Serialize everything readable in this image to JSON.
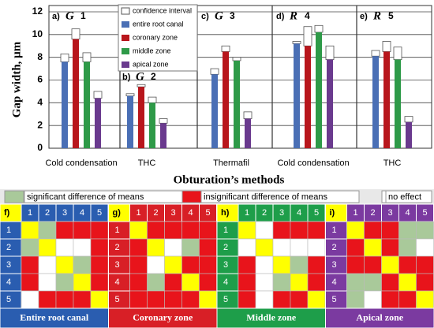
{
  "chart_data": {
    "type": "bar",
    "y_label": "Gap width, µm",
    "x_label": "Obturation’s methods",
    "categories": [
      "Cold condensation",
      "THC",
      "Thermafil",
      "Cold condensation",
      "THC"
    ],
    "panels": [
      {
        "letter": "a)",
        "name": "G",
        "number": "1"
      },
      {
        "letter": "b)",
        "name": "G",
        "number": "2"
      },
      {
        "letter": "c)",
        "name": "G",
        "number": "3"
      },
      {
        "letter": "d)",
        "name": "R",
        "number": "4"
      },
      {
        "letter": "e)",
        "name": "R",
        "number": "5"
      }
    ],
    "ci_name": "confidence interval",
    "ci_color": "#ffffff",
    "series": [
      {
        "name": "entire root canal",
        "color": "#4a6fb5",
        "values": [
          7.6,
          4.6,
          6.5,
          9.2,
          8.1
        ],
        "ci": [
          8.3,
          4.8,
          7.0,
          9.4,
          8.6
        ]
      },
      {
        "name": "coronary zone",
        "color": "#b8161c",
        "values": [
          9.6,
          5.4,
          8.5,
          9.0,
          8.5
        ],
        "ci": [
          10.5,
          5.6,
          9.0,
          10.7,
          9.4
        ]
      },
      {
        "name": "middle zone",
        "color": "#2e9a48",
        "values": [
          7.6,
          4.0,
          7.7,
          10.2,
          7.8
        ],
        "ci": [
          8.4,
          4.5,
          8.0,
          10.8,
          8.9
        ]
      },
      {
        "name": "apical zone",
        "color": "#6a3a8e",
        "values": [
          4.4,
          2.2,
          2.6,
          7.8,
          2.3
        ],
        "ci": [
          5.0,
          2.6,
          3.2,
          9.0,
          2.8
        ]
      }
    ],
    "ylim": [
      0,
      12
    ],
    "yticks": [
      0,
      2,
      4,
      6,
      8,
      10,
      12
    ],
    "grid": true
  },
  "matrix_legend": [
    {
      "label": "significant difference of means",
      "color": "#a9c99a"
    },
    {
      "label": "insignificant difference of means",
      "color": "#e8141b"
    },
    {
      "label": "no effect",
      "color": "#ffffff"
    }
  ],
  "matrices": [
    {
      "letter": "f)",
      "title": "Entire root canal",
      "color": "#2a5db0",
      "columns": [
        "1",
        "2",
        "3",
        "4",
        "5"
      ],
      "rows": [
        "1",
        "2",
        "3",
        "4",
        "5"
      ],
      "cells": [
        [
          "#ffff00",
          "#a9c99a",
          "#e8141b",
          "#e8141b",
          "#e8141b"
        ],
        [
          "#a9c99a",
          "#ffff00",
          "#ffffff",
          "#ffffff",
          "#e8141b"
        ],
        [
          "#e8141b",
          "#ffffff",
          "#ffff00",
          "#a9c99a",
          "#e8141b"
        ],
        [
          "#e8141b",
          "#ffffff",
          "#a9c99a",
          "#ffff00",
          "#e8141b"
        ],
        [
          "#ffffff",
          "#e8141b",
          "#e8141b",
          "#e8141b",
          "#ffff00"
        ]
      ]
    },
    {
      "letter": "g)",
      "title": "Coronary zone",
      "color": "#d81f26",
      "columns": [
        "1",
        "2",
        "3",
        "4",
        "5"
      ],
      "rows": [
        "1",
        "2",
        "3",
        "4",
        "5"
      ],
      "cells": [
        [
          "#ffff00",
          "#e8141b",
          "#e8141b",
          "#e8141b",
          "#e8141b"
        ],
        [
          "#e8141b",
          "#ffff00",
          "#ffffff",
          "#a9c99a",
          "#e8141b"
        ],
        [
          "#e8141b",
          "#ffffff",
          "#ffff00",
          "#e8141b",
          "#e8141b"
        ],
        [
          "#e8141b",
          "#a9c99a",
          "#e8141b",
          "#ffff00",
          "#e8141b"
        ],
        [
          "#e8141b",
          "#e8141b",
          "#e8141b",
          "#e8141b",
          "#ffff00"
        ]
      ]
    },
    {
      "letter": "h)",
      "title": "Middle zone",
      "color": "#1e9e4a",
      "columns": [
        "1",
        "2",
        "3",
        "4",
        "5"
      ],
      "rows": [
        "1",
        "2",
        "3",
        "4",
        "5"
      ],
      "cells": [
        [
          "#ffff00",
          "#ffffff",
          "#e8141b",
          "#e8141b",
          "#e8141b"
        ],
        [
          "#ffffff",
          "#ffff00",
          "#ffffff",
          "#ffffff",
          "#ffffff"
        ],
        [
          "#e8141b",
          "#ffffff",
          "#ffff00",
          "#a9c99a",
          "#e8141b"
        ],
        [
          "#e8141b",
          "#ffffff",
          "#a9c99a",
          "#ffff00",
          "#e8141b"
        ],
        [
          "#e8141b",
          "#ffffff",
          "#e8141b",
          "#e8141b",
          "#ffff00"
        ]
      ]
    },
    {
      "letter": "i)",
      "title": "Apical zone",
      "color": "#7b3aa0",
      "columns": [
        "1",
        "2",
        "3",
        "4",
        "5"
      ],
      "rows": [
        "1",
        "2",
        "3",
        "4",
        "5"
      ],
      "cells": [
        [
          "#ffff00",
          "#e8141b",
          "#e8141b",
          "#a9c99a",
          "#a9c99a"
        ],
        [
          "#e8141b",
          "#ffff00",
          "#e8141b",
          "#a9c99a",
          "#ffffff"
        ],
        [
          "#e8141b",
          "#e8141b",
          "#ffff00",
          "#e8141b",
          "#e8141b"
        ],
        [
          "#a9c99a",
          "#a9c99a",
          "#e8141b",
          "#ffff00",
          "#e8141b"
        ],
        [
          "#a9c99a",
          "#ffffff",
          "#e8141b",
          "#e8141b",
          "#ffff00"
        ]
      ]
    }
  ]
}
